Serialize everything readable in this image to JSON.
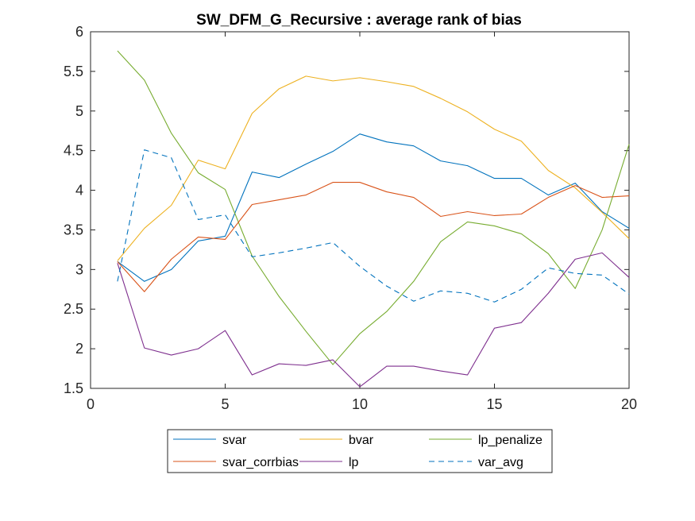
{
  "chart_data": {
    "type": "line",
    "title": "SW_DFM_G_Recursive : average rank of bias",
    "xlabel": "",
    "ylabel": "",
    "xlim": [
      0,
      20
    ],
    "ylim": [
      1.5,
      6
    ],
    "xticks": [
      0,
      5,
      10,
      15,
      20
    ],
    "yticks": [
      1.5,
      2,
      2.5,
      3,
      3.5,
      4,
      4.5,
      5,
      5.5,
      6
    ],
    "x": [
      1,
      2,
      3,
      4,
      5,
      6,
      7,
      8,
      9,
      10,
      11,
      12,
      13,
      14,
      15,
      16,
      17,
      18,
      19,
      20
    ],
    "grid": false,
    "legend_position": "bottom, outside",
    "series": [
      {
        "name": "svar",
        "color": "#0072BD",
        "dash": "solid",
        "values": [
          3.1,
          2.85,
          3.0,
          3.36,
          3.42,
          4.23,
          4.16,
          4.33,
          4.49,
          4.71,
          4.61,
          4.56,
          4.37,
          4.31,
          4.15,
          4.15,
          3.94,
          4.09,
          3.73,
          3.52
        ]
      },
      {
        "name": "bvar",
        "color": "#EDB120",
        "dash": "solid",
        "values": [
          3.11,
          3.52,
          3.81,
          4.38,
          4.27,
          4.97,
          5.28,
          5.44,
          5.38,
          5.42,
          5.37,
          5.31,
          5.16,
          4.99,
          4.77,
          4.62,
          4.25,
          4.03,
          3.72,
          3.39
        ]
      },
      {
        "name": "lp_penalize",
        "color": "#77AC30",
        "dash": "solid",
        "values": [
          5.76,
          5.39,
          4.72,
          4.22,
          4.01,
          3.17,
          2.66,
          2.22,
          1.8,
          2.19,
          2.47,
          2.85,
          3.35,
          3.6,
          3.55,
          3.45,
          3.2,
          2.76,
          3.5,
          4.58
        ]
      },
      {
        "name": "svar_corrbias",
        "color": "#D95319",
        "dash": "solid",
        "values": [
          3.1,
          2.72,
          3.13,
          3.41,
          3.38,
          3.82,
          3.88,
          3.94,
          4.1,
          4.1,
          3.98,
          3.91,
          3.67,
          3.73,
          3.68,
          3.7,
          3.91,
          4.06,
          3.91,
          3.93
        ]
      },
      {
        "name": "lp",
        "color": "#7E2F8E",
        "dash": "solid",
        "values": [
          3.08,
          2.01,
          1.92,
          2.0,
          2.23,
          1.67,
          1.81,
          1.79,
          1.86,
          1.52,
          1.78,
          1.78,
          1.72,
          1.67,
          2.26,
          2.33,
          2.7,
          3.13,
          3.21,
          2.9
        ]
      },
      {
        "name": "var_avg",
        "color": "#0072BD",
        "dash": "dashed",
        "values": [
          2.85,
          4.51,
          4.41,
          3.63,
          3.69,
          3.16,
          3.21,
          3.27,
          3.34,
          3.04,
          2.79,
          2.6,
          2.73,
          2.7,
          2.59,
          2.75,
          3.02,
          2.95,
          2.93,
          2.69
        ]
      }
    ]
  }
}
